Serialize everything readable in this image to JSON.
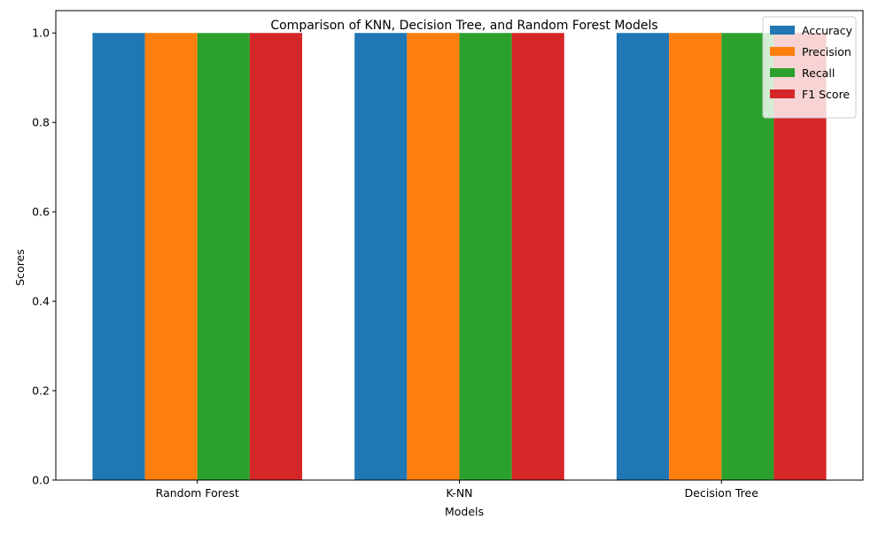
{
  "chart_data": {
    "type": "bar",
    "title": "Comparison of KNN, Decision Tree, and Random Forest Models",
    "xlabel": "Models",
    "ylabel": "Scores",
    "categories": [
      "Random Forest",
      "K-NN",
      "Decision Tree"
    ],
    "series": [
      {
        "name": "Accuracy",
        "color": "#1f77b4",
        "values": [
          1.0,
          1.0,
          1.0
        ]
      },
      {
        "name": "Precision",
        "color": "#ff7f0e",
        "values": [
          1.0,
          1.0,
          1.0
        ]
      },
      {
        "name": "Recall",
        "color": "#2ca02c",
        "values": [
          1.0,
          1.0,
          1.0
        ]
      },
      {
        "name": "F1 Score",
        "color": "#d62728",
        "values": [
          1.0,
          1.0,
          1.0
        ]
      }
    ],
    "ylim": [
      0,
      1.05
    ],
    "yticks": [
      "0.0",
      "0.2",
      "0.4",
      "0.6",
      "0.8",
      "1.0"
    ],
    "grid": false,
    "legend_position": "top-right"
  }
}
